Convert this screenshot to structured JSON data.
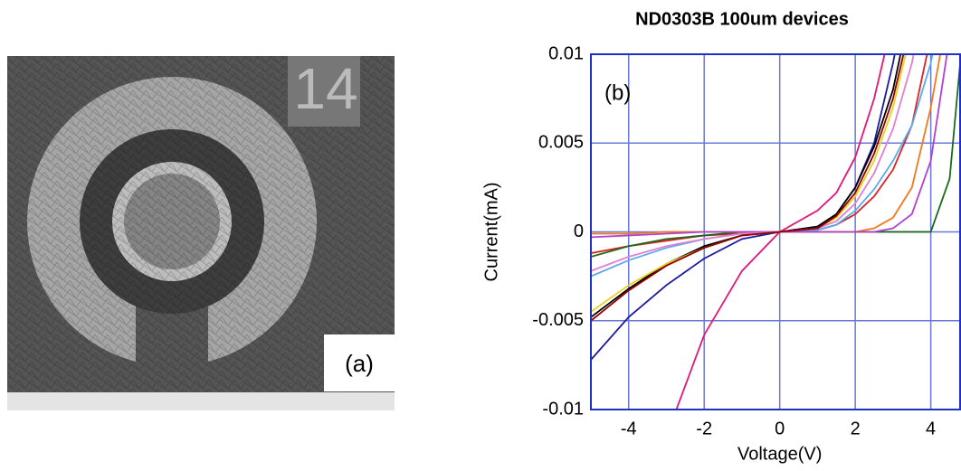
{
  "photo": {
    "label": "(a)",
    "marker": "14"
  },
  "chart_data": {
    "type": "line",
    "title": "ND0303B 100um devices",
    "annotation": "(b)",
    "x_label": "Voltage(V)",
    "y_label": "Current(mA)",
    "x": [
      -5,
      -4,
      -3,
      -2,
      -1,
      0,
      1,
      1.5,
      2,
      2.5,
      3,
      3.5,
      4,
      4.5,
      4.8
    ],
    "series": [
      {
        "color": "#1a1aa0",
        "values": [
          -0.0072,
          -0.0048,
          -0.003,
          -0.0015,
          -0.0004,
          0,
          0.0003,
          0.001,
          0.0025,
          0.005,
          0.0095,
          0.015,
          null,
          null,
          null
        ]
      },
      {
        "color": "#e0177a",
        "values": [
          null,
          null,
          -0.0115,
          -0.0058,
          -0.0022,
          0,
          0.0012,
          0.0022,
          0.0042,
          0.0075,
          0.012,
          null,
          null,
          null,
          null
        ]
      },
      {
        "color": "#000000",
        "values": [
          -0.0048,
          -0.0032,
          -0.0018,
          -0.0008,
          -0.0002,
          0,
          0.0003,
          0.001,
          0.0025,
          0.0048,
          0.008,
          0.013,
          null,
          null,
          null
        ]
      },
      {
        "color": "#e02020",
        "values": [
          -0.0012,
          -0.0008,
          -0.0005,
          -0.0002,
          -0.0001,
          0,
          0.0001,
          0.0004,
          0.001,
          0.002,
          0.0035,
          0.006,
          0.011,
          null,
          null
        ]
      },
      {
        "color": "#1a6a1a",
        "values": [
          -0.0014,
          -0.0008,
          -0.0004,
          -0.0002,
          0,
          0,
          0,
          0,
          0,
          0,
          0,
          0,
          0,
          0.003,
          0.01
        ]
      },
      {
        "color": "#e6d21e",
        "values": [
          -0.0045,
          -0.003,
          -0.0018,
          -0.0009,
          -0.0002,
          0,
          0.0002,
          0.0008,
          0.002,
          0.004,
          0.007,
          0.0115,
          null,
          null,
          null
        ]
      },
      {
        "color": "#5aaaf0",
        "values": [
          -0.0025,
          -0.0016,
          -0.0009,
          -0.0004,
          -0.0001,
          0,
          0.0001,
          0.0004,
          0.0012,
          0.0024,
          0.004,
          0.006,
          0.0095,
          0.015,
          null
        ]
      },
      {
        "color": "#f07a1a",
        "values": [
          -0.0001,
          -0.0001,
          0,
          0,
          0,
          0,
          0,
          0,
          0,
          0.0002,
          0.0008,
          0.0025,
          0.007,
          0.013,
          null
        ]
      },
      {
        "color": "#b040d0",
        "values": [
          -0.0003,
          -0.0002,
          -0.0001,
          0,
          0,
          0,
          0,
          0,
          0,
          0,
          0.0002,
          0.001,
          0.004,
          0.011,
          null
        ]
      },
      {
        "color": "#e080d0",
        "values": [
          -0.0022,
          -0.0014,
          -0.0008,
          -0.0004,
          -0.0001,
          0,
          0.0002,
          0.0006,
          0.0016,
          0.0033,
          0.0058,
          0.0095,
          0.015,
          null,
          null
        ]
      },
      {
        "color": "#900000",
        "values": [
          -0.005,
          -0.0033,
          -0.0019,
          -0.0009,
          -0.0002,
          0,
          0.0002,
          0.0009,
          0.0022,
          0.0044,
          0.0075,
          0.012,
          null,
          null,
          null
        ]
      }
    ],
    "xlim": [
      -5,
      4.8
    ],
    "ylim": [
      -0.01,
      0.01
    ],
    "xticks": [
      -4,
      -2,
      0,
      2,
      4
    ],
    "yticks": [
      -0.01,
      -0.005,
      0,
      0.005,
      0.01
    ],
    "grid": true,
    "grid_color": "#6a78d8",
    "axis_color": "#2030c0"
  }
}
